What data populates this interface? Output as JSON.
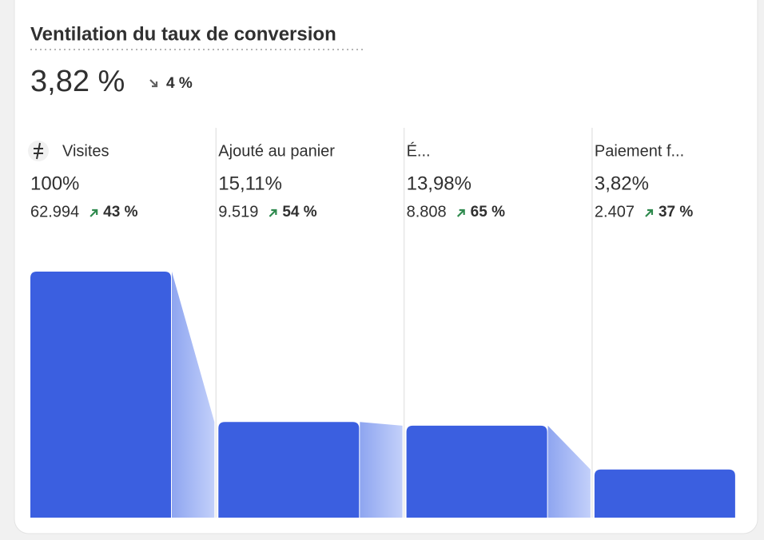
{
  "chart_data": {
    "type": "funnel",
    "title": "Ventilation du taux de conversion",
    "headline": "3,82 %",
    "headline_change": "4 %",
    "headline_trend": "down",
    "categories": [
      "Visites",
      "Ajouté au panier",
      "É...",
      "Paiement f..."
    ],
    "values": [
      100,
      15.11,
      13.98,
      3.82
    ],
    "value_labels": [
      "100%",
      "15,11%",
      "13,98%",
      "3,82%"
    ],
    "counts": [
      "62.994",
      "9.519",
      "8.808",
      "2.407"
    ],
    "changes": [
      "43 %",
      "54 %",
      "65 %",
      "37 %"
    ],
    "trends": [
      "up",
      "up",
      "up",
      "up"
    ],
    "ylim": [
      0,
      100
    ],
    "scale": "sqrt",
    "color": "#3b5fe0",
    "connector_color": "#a9bbf6",
    "up_color": "#2f8a4e",
    "down_color": "#616161"
  }
}
